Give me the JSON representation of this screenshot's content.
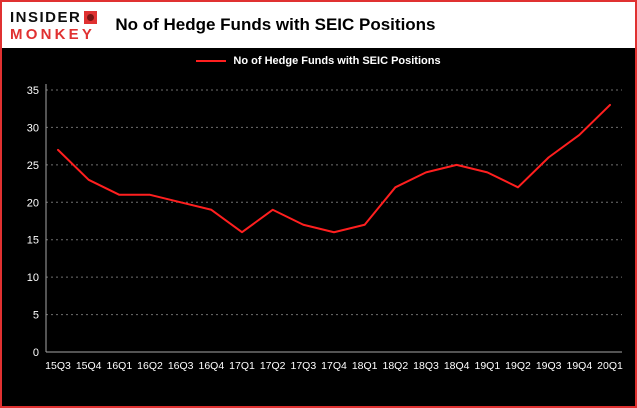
{
  "logo": {
    "line1": "INSIDER",
    "line2": "MONKEY"
  },
  "title": "No of Hedge Funds with SEIC Positions",
  "legend": {
    "label": "No of Hedge Funds with SEIC Positions"
  },
  "colors": {
    "frame_border": "#e03131",
    "plot_background": "#000000",
    "header_background": "#ffffff",
    "line": "#ff1f1f",
    "grid": "#6f6f6f",
    "axis": "#a6a6a6",
    "tick_text": "#ffffff",
    "title_text": "#000000",
    "logo_black": "#0d0d0d",
    "logo_red": "#e03131"
  },
  "chart_data": {
    "type": "line",
    "title": "No of Hedge Funds with SEIC Positions",
    "legend_entries": [
      "No of Hedge Funds with SEIC Positions"
    ],
    "legend_position": "top-center",
    "categories": [
      "15Q3",
      "15Q4",
      "16Q1",
      "16Q2",
      "16Q3",
      "16Q4",
      "17Q1",
      "17Q2",
      "17Q3",
      "17Q4",
      "18Q1",
      "18Q2",
      "18Q3",
      "18Q4",
      "19Q1",
      "19Q2",
      "19Q3",
      "19Q4",
      "20Q1"
    ],
    "values": [
      27,
      23,
      21,
      21,
      20,
      19,
      16,
      19,
      17,
      16,
      17,
      22,
      24,
      25,
      24,
      22,
      26,
      29,
      33
    ],
    "xlabel": "",
    "ylabel": "",
    "ylim": [
      0,
      35
    ],
    "yticks": [
      0,
      5,
      10,
      15,
      20,
      25,
      30,
      35
    ],
    "grid": true,
    "grid_style": "dotted",
    "series_color": "#ff1f1f"
  }
}
